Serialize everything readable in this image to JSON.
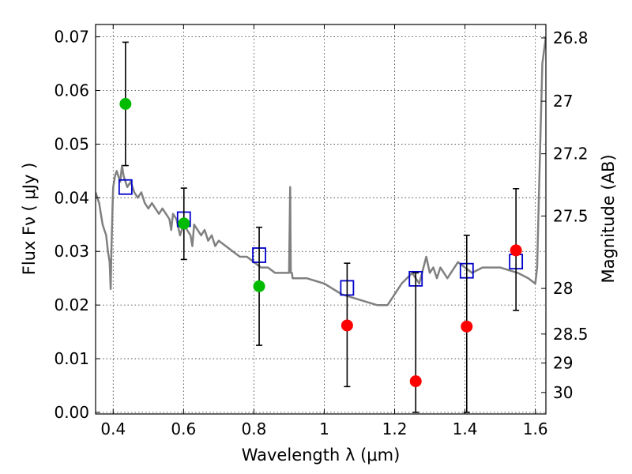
{
  "chart_data": {
    "type": "scatter",
    "xlabel": "Wavelength  λ (μm)",
    "ylabel": "Flux  Fν  ( μJy )",
    "ylabel_right": "Magnitude (AB)",
    "xlim": [
      0.35,
      1.63
    ],
    "ylim": [
      -0.0003,
      0.0723
    ],
    "grid": true,
    "x_ticks": [
      0.4,
      0.6,
      0.8,
      1.0,
      1.2,
      1.4,
      1.6
    ],
    "x_tick_labels": [
      "0.4",
      "0.6",
      "0.8",
      "1",
      "1.2",
      "1.4",
      "1.6"
    ],
    "y_ticks": [
      0.0,
      0.01,
      0.02,
      0.03,
      0.04,
      0.05,
      0.06,
      0.07
    ],
    "y_tick_labels": [
      "0.00",
      "0.01",
      "0.02",
      "0.03",
      "0.04",
      "0.05",
      "0.06",
      "0.07"
    ],
    "right_ticks": [
      {
        "label": "26.8",
        "flux": 0.0698
      },
      {
        "label": "27",
        "flux": 0.058
      },
      {
        "label": "27.2",
        "flux": 0.0482
      },
      {
        "label": "27.5",
        "flux": 0.0366
      },
      {
        "label": "28",
        "flux": 0.0231
      },
      {
        "label": "28.5",
        "flux": 0.0146
      },
      {
        "label": "29",
        "flux": 0.0092
      },
      {
        "label": "30",
        "flux": 0.0037
      }
    ],
    "series": [
      {
        "kind": "line",
        "color": "#808080",
        "x": [
          0.35,
          0.355,
          0.36,
          0.365,
          0.37,
          0.375,
          0.38,
          0.385,
          0.39,
          0.393,
          0.395,
          0.398,
          0.4,
          0.405,
          0.41,
          0.415,
          0.42,
          0.425,
          0.43,
          0.435,
          0.44,
          0.45,
          0.46,
          0.47,
          0.48,
          0.49,
          0.5,
          0.51,
          0.52,
          0.53,
          0.54,
          0.55,
          0.56,
          0.565,
          0.57,
          0.58,
          0.59,
          0.6,
          0.61,
          0.62,
          0.625,
          0.63,
          0.64,
          0.65,
          0.66,
          0.67,
          0.68,
          0.69,
          0.7,
          0.72,
          0.74,
          0.76,
          0.78,
          0.8,
          0.82,
          0.84,
          0.86,
          0.88,
          0.9,
          0.903,
          0.905,
          0.908,
          0.91,
          0.93,
          0.95,
          1.0,
          1.05,
          1.1,
          1.15,
          1.18,
          1.2,
          1.22,
          1.25,
          1.27,
          1.29,
          1.3,
          1.31,
          1.32,
          1.33,
          1.35,
          1.38,
          1.4,
          1.42,
          1.45,
          1.5,
          1.55,
          1.58,
          1.6,
          1.605,
          1.61,
          1.62,
          1.63
        ],
        "y": [
          0.041,
          0.04,
          0.039,
          0.037,
          0.035,
          0.034,
          0.033,
          0.03,
          0.028,
          0.023,
          0.03,
          0.038,
          0.042,
          0.044,
          0.045,
          0.044,
          0.043,
          0.046,
          0.044,
          0.043,
          0.042,
          0.043,
          0.041,
          0.04,
          0.041,
          0.039,
          0.038,
          0.039,
          0.038,
          0.037,
          0.038,
          0.037,
          0.036,
          0.034,
          0.037,
          0.036,
          0.033,
          0.035,
          0.034,
          0.033,
          0.031,
          0.035,
          0.034,
          0.033,
          0.034,
          0.032,
          0.033,
          0.031,
          0.032,
          0.031,
          0.03,
          0.029,
          0.029,
          0.028,
          0.027,
          0.027,
          0.026,
          0.026,
          0.026,
          0.042,
          0.026,
          0.026,
          0.025,
          0.025,
          0.025,
          0.024,
          0.022,
          0.021,
          0.02,
          0.02,
          0.022,
          0.024,
          0.026,
          0.024,
          0.029,
          0.026,
          0.027,
          0.025,
          0.027,
          0.025,
          0.028,
          0.027,
          0.026,
          0.027,
          0.027,
          0.026,
          0.025,
          0.024,
          0.027,
          0.04,
          0.065,
          0.07
        ]
      },
      {
        "kind": "model_points",
        "marker": "open-square",
        "color": "#0000cc",
        "x": [
          0.435,
          0.601,
          0.815,
          1.065,
          1.26,
          1.405,
          1.545
        ],
        "y": [
          0.042,
          0.036,
          0.0293,
          0.0232,
          0.0249,
          0.0264,
          0.0281
        ]
      },
      {
        "kind": "errorbar",
        "color": "#000000",
        "x": [
          0.435,
          0.601,
          0.815,
          1.065,
          1.26,
          1.405,
          1.545
        ],
        "y_low": [
          0.046,
          0.0285,
          0.0125,
          0.0048,
          0.0,
          0.0,
          0.019
        ],
        "y_high": [
          0.069,
          0.0418,
          0.0345,
          0.0278,
          0.026,
          0.033,
          0.0417
        ]
      },
      {
        "kind": "points",
        "marker": "filled-circle",
        "color": "#00bb00",
        "x": [
          0.435,
          0.601,
          0.815
        ],
        "y": [
          0.0575,
          0.0352,
          0.0235
        ]
      },
      {
        "kind": "points",
        "marker": "filled-circle",
        "color": "#ff0000",
        "x": [
          1.065,
          1.26,
          1.405,
          1.545
        ],
        "y": [
          0.0162,
          0.0058,
          0.016,
          0.0302
        ]
      }
    ]
  }
}
